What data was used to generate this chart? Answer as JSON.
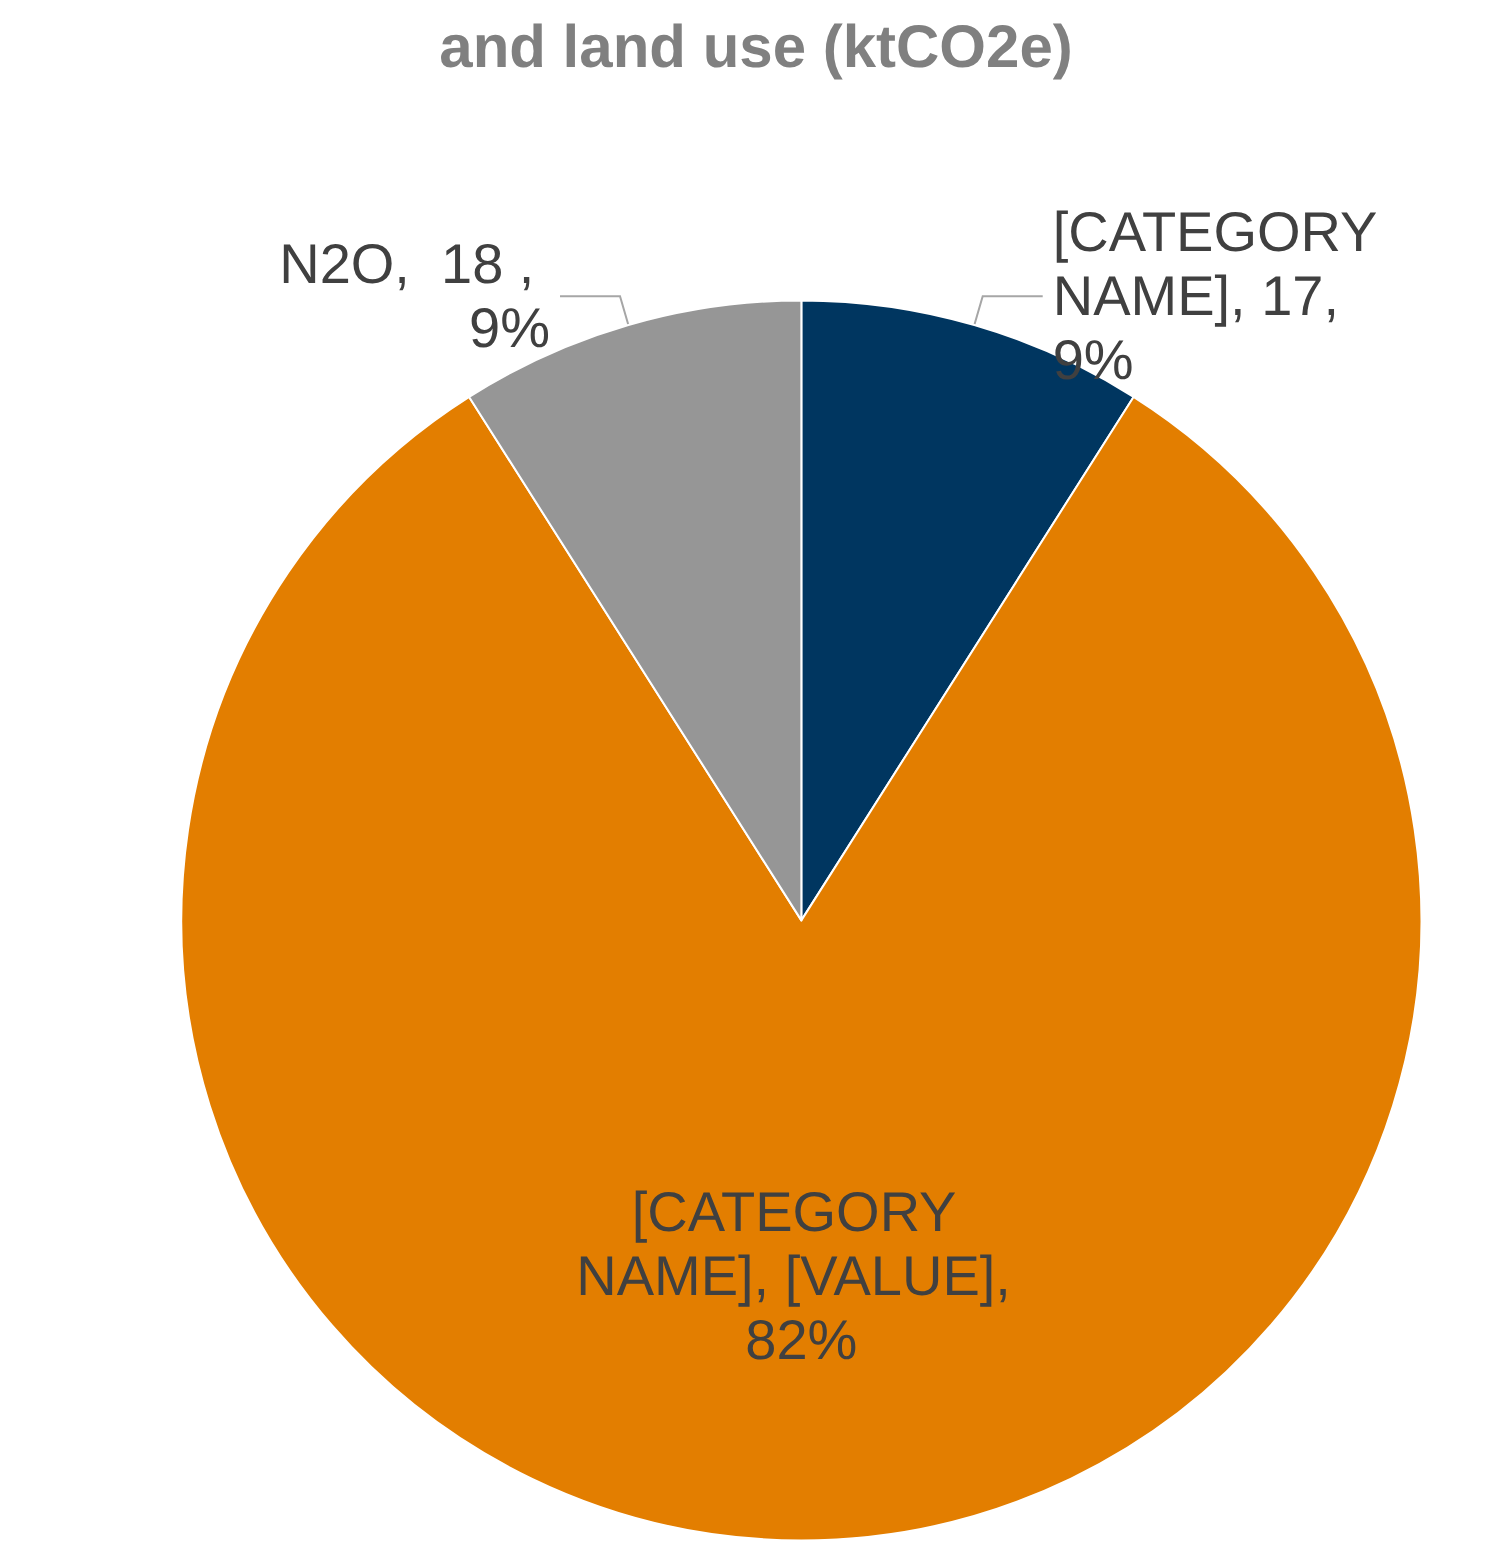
{
  "chart_data": {
    "type": "pie",
    "title": "and land use (ktCO2e)",
    "categories": [
      null,
      null,
      null
    ],
    "values": [
      9,
      82,
      9
    ],
    "value_labels": [
      "[CATEGORY NAME], 17, 9%",
      "[CATEGORY NAME], [VALUE], 82%",
      "N2O,  18 , 9%"
    ],
    "colors": [
      "#003660",
      "#e37e00",
      "#969696"
    ]
  }
}
